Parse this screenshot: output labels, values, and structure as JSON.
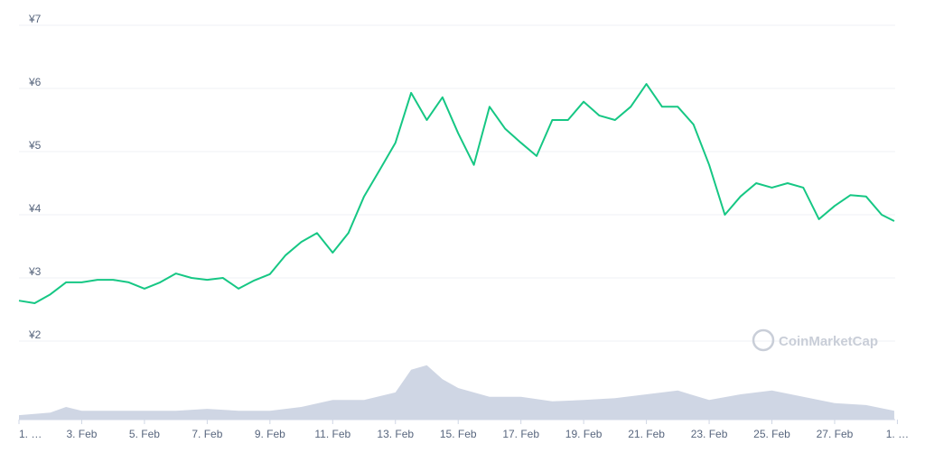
{
  "chart_data": {
    "type": "line",
    "watermark": "CoinMarketCap",
    "xlim": [
      0,
      27.93
    ],
    "ylim": [
      2,
      7
    ],
    "y2lim": [
      0,
      100
    ],
    "grid": true,
    "yticks": [
      {
        "value": 2,
        "label": "¥2"
      },
      {
        "value": 3,
        "label": "¥3"
      },
      {
        "value": 4,
        "label": "¥4"
      },
      {
        "value": 5,
        "label": "¥5"
      },
      {
        "value": 6,
        "label": "¥6"
      },
      {
        "value": 7,
        "label": "¥7"
      }
    ],
    "xticks": [
      {
        "value": 0,
        "label": "1. …"
      },
      {
        "value": 2,
        "label": "3. Feb"
      },
      {
        "value": 4,
        "label": "5. Feb"
      },
      {
        "value": 6,
        "label": "7. Feb"
      },
      {
        "value": 8,
        "label": "9. Feb"
      },
      {
        "value": 10,
        "label": "11. Feb"
      },
      {
        "value": 12,
        "label": "13. Feb"
      },
      {
        "value": 14,
        "label": "15. Feb"
      },
      {
        "value": 16,
        "label": "17. Feb"
      },
      {
        "value": 18,
        "label": "19. Feb"
      },
      {
        "value": 20,
        "label": "21. Feb"
      },
      {
        "value": 22,
        "label": "23. Feb"
      },
      {
        "value": 24,
        "label": "25. Feb"
      },
      {
        "value": 26,
        "label": "27. Feb"
      },
      {
        "value": 28,
        "label": "1. …"
      }
    ],
    "series": [
      {
        "color": "#16c784",
        "x": [
          0,
          0.5,
          1,
          1.5,
          2,
          2.5,
          3,
          3.5,
          4,
          4.5,
          5,
          5.5,
          6,
          6.5,
          7,
          7.5,
          8,
          8.5,
          9,
          9.5,
          10,
          10.5,
          11,
          11.5,
          12,
          12.5,
          13,
          13.5,
          14,
          14.5,
          15,
          15.5,
          16,
          16.5,
          17,
          17.5,
          18,
          18.5,
          19,
          19.5,
          20,
          20.5,
          21,
          21.5,
          22,
          22.5,
          23,
          23.5,
          24,
          24.5,
          25,
          25.5,
          26,
          26.5,
          27,
          27.5,
          27.9
        ],
        "values": [
          2.64,
          2.6,
          2.74,
          2.93,
          2.93,
          2.97,
          2.97,
          2.93,
          2.83,
          2.93,
          3.07,
          3.0,
          2.97,
          3.0,
          2.83,
          2.96,
          3.06,
          3.36,
          3.57,
          3.71,
          3.4,
          3.71,
          4.29,
          4.71,
          5.14,
          5.93,
          5.5,
          5.86,
          5.29,
          4.79,
          5.71,
          5.36,
          5.14,
          4.93,
          5.5,
          5.5,
          5.79,
          5.57,
          5.5,
          5.71,
          6.07,
          5.71,
          5.71,
          5.43,
          4.79,
          4.0,
          4.29,
          4.5,
          4.43,
          4.5,
          4.43,
          3.93,
          4.14,
          4.31,
          4.29,
          4.0,
          3.9
        ]
      },
      {
        "color": "#cfd6e4",
        "axis": "y2",
        "x": [
          0,
          1,
          1.5,
          2,
          3,
          4,
          5,
          6,
          7,
          8,
          9,
          10,
          11,
          12,
          12.5,
          13,
          13.5,
          14,
          15,
          16,
          17,
          18,
          19,
          20,
          21,
          22,
          23,
          24,
          25,
          26,
          27,
          27.9
        ],
        "values": [
          7,
          11,
          20,
          14,
          14,
          14,
          14,
          17,
          14,
          14,
          20,
          31,
          31,
          43,
          79,
          86,
          64,
          50,
          36,
          36,
          29,
          31,
          34,
          40,
          46,
          31,
          40,
          46,
          36,
          26,
          23,
          14
        ]
      }
    ]
  }
}
